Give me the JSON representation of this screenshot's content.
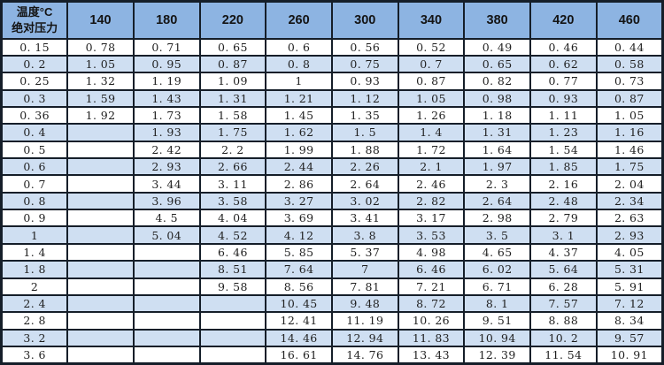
{
  "colors": {
    "header_bg": "#8db4e2",
    "stripe_bg": "#cfdff2",
    "row_bg": "#ffffff",
    "border": "#151e29",
    "text": "#1f1f1f"
  },
  "chart_data": {
    "type": "table",
    "corner": [
      "温度°C",
      "绝对压力"
    ],
    "columns": [
      "140",
      "180",
      "220",
      "260",
      "300",
      "340",
      "380",
      "420",
      "460"
    ],
    "rows": [
      {
        "label": "0.15",
        "values": [
          "0.78",
          "0.71",
          "0.65",
          "0.6",
          "0.56",
          "0.52",
          "0.49",
          "0.46",
          "0.44"
        ]
      },
      {
        "label": "0.2",
        "values": [
          "1.05",
          "0.95",
          "0.87",
          "0.8",
          "0.75",
          "0.7",
          "0.65",
          "0.62",
          "0.58"
        ]
      },
      {
        "label": "0.25",
        "values": [
          "1.32",
          "1.19",
          "1.09",
          "1",
          "0.93",
          "0.87",
          "0.82",
          "0.77",
          "0.73"
        ]
      },
      {
        "label": "0.3",
        "values": [
          "1.59",
          "1.43",
          "1.31",
          "1.21",
          "1.12",
          "1.05",
          "0.98",
          "0.93",
          "0.87"
        ]
      },
      {
        "label": "0.36",
        "values": [
          "1.92",
          "1.73",
          "1.58",
          "1.45",
          "1.35",
          "1.26",
          "1.18",
          "1.11",
          "1.05"
        ]
      },
      {
        "label": "0.4",
        "values": [
          "",
          "1.93",
          "1.75",
          "1.62",
          "1.5",
          "1.4",
          "1.31",
          "1.23",
          "1.16"
        ]
      },
      {
        "label": "0.5",
        "values": [
          "",
          "2.42",
          "2.2",
          "1.99",
          "1.88",
          "1.72",
          "1.64",
          "1.54",
          "1.46"
        ]
      },
      {
        "label": "0.6",
        "values": [
          "",
          "2.93",
          "2.66",
          "2.44",
          "2.26",
          "2.1",
          "1.97",
          "1.85",
          "1.75"
        ]
      },
      {
        "label": "0.7",
        "values": [
          "",
          "3.44",
          "3.11",
          "2.86",
          "2.64",
          "2.46",
          "2.3",
          "2.16",
          "2.04"
        ]
      },
      {
        "label": "0.8",
        "values": [
          "",
          "3.96",
          "3.58",
          "3.27",
          "3.02",
          "2.82",
          "2.64",
          "2.48",
          "2.34"
        ]
      },
      {
        "label": "0.9",
        "values": [
          "",
          "4.5",
          "4.04",
          "3.69",
          "3.41",
          "3.17",
          "2.98",
          "2.79",
          "2.63"
        ]
      },
      {
        "label": "1",
        "values": [
          "",
          "5.04",
          "4.52",
          "4.12",
          "3.8",
          "3.53",
          "3.5",
          "3.1",
          "2.93"
        ]
      },
      {
        "label": "1.4",
        "values": [
          "",
          "",
          "6.46",
          "5.85",
          "5.37",
          "4.98",
          "4.65",
          "4.37",
          "4.05"
        ]
      },
      {
        "label": "1.8",
        "values": [
          "",
          "",
          "8.51",
          "7.64",
          "7",
          "6.46",
          "6.02",
          "5.64",
          "5.31"
        ]
      },
      {
        "label": "2",
        "values": [
          "",
          "",
          "9.58",
          "8.56",
          "7.81",
          "7.21",
          "6.71",
          "6.28",
          "5.91"
        ]
      },
      {
        "label": "2.4",
        "values": [
          "",
          "",
          "",
          "10.45",
          "9.48",
          "8.72",
          "8.1",
          "7.57",
          "7.12"
        ]
      },
      {
        "label": "2.8",
        "values": [
          "",
          "",
          "",
          "12.41",
          "11.19",
          "10.26",
          "9.51",
          "8.88",
          "8.34"
        ]
      },
      {
        "label": "3.2",
        "values": [
          "",
          "",
          "",
          "14.46",
          "12.94",
          "11.83",
          "10.94",
          "10.2",
          "9.57"
        ]
      },
      {
        "label": "3.6",
        "values": [
          "",
          "",
          "",
          "16.61",
          "14.76",
          "13.43",
          "12.39",
          "11.54",
          "10.91"
        ]
      }
    ]
  }
}
